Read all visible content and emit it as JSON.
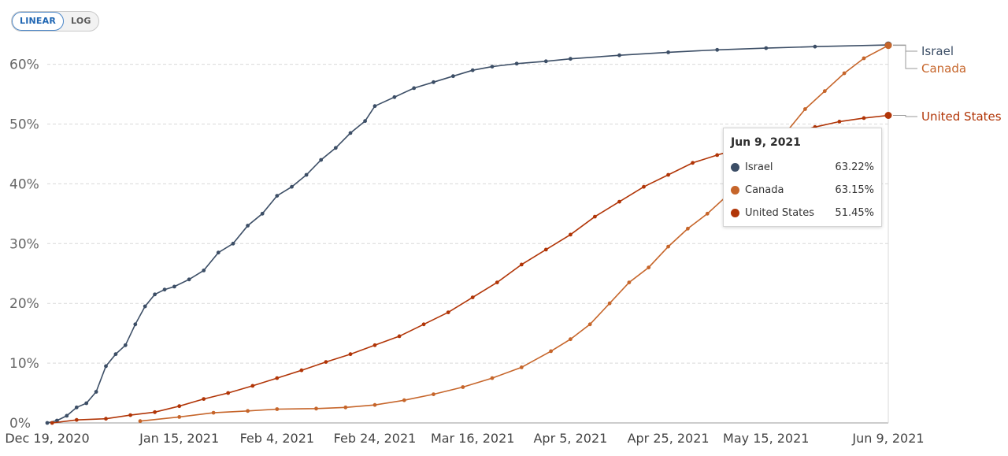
{
  "controls": {
    "linear_label": "LINEAR",
    "log_label": "LOG",
    "active": "linear"
  },
  "tooltip": {
    "date": "Jun 9, 2021",
    "rows": [
      {
        "name": "Israel",
        "value": "63.22%",
        "color": "#3c4e66"
      },
      {
        "name": "Canada",
        "value": "63.15%",
        "color": "#c6652a"
      },
      {
        "name": "United States",
        "value": "51.45%",
        "color": "#b13507"
      }
    ]
  },
  "chart_data": {
    "type": "line",
    "x_unit": "date",
    "xlim": [
      "2020-12-19",
      "2021-06-09"
    ],
    "ylim": [
      0,
      63.5
    ],
    "y_ticks": [
      0,
      10,
      20,
      30,
      40,
      50,
      60
    ],
    "y_tick_labels": [
      "0%",
      "10%",
      "20%",
      "30%",
      "40%",
      "50%",
      "60%"
    ],
    "x_ticks": [
      "2020-12-19",
      "2021-01-15",
      "2021-02-04",
      "2021-02-24",
      "2021-03-16",
      "2021-04-05",
      "2021-04-25",
      "2021-05-15",
      "2021-06-09"
    ],
    "x_tick_labels": [
      "Dec 19, 2020",
      "Jan 15, 2021",
      "Feb 4, 2021",
      "Feb 24, 2021",
      "Mar 16, 2021",
      "Apr 5, 2021",
      "Apr 25, 2021",
      "May 15, 2021",
      "Jun 9, 2021"
    ],
    "grid": true,
    "series": [
      {
        "name": "Israel",
        "color": "#3c4e66",
        "points": [
          [
            "2020-12-19",
            0
          ],
          [
            "2020-12-21",
            0.4
          ],
          [
            "2020-12-23",
            1.2
          ],
          [
            "2020-12-25",
            2.6
          ],
          [
            "2020-12-27",
            3.3
          ],
          [
            "2020-12-29",
            5.2
          ],
          [
            "2020-12-31",
            9.5
          ],
          [
            "2021-01-02",
            11.5
          ],
          [
            "2021-01-04",
            13.0
          ],
          [
            "2021-01-06",
            16.5
          ],
          [
            "2021-01-08",
            19.5
          ],
          [
            "2021-01-10",
            21.5
          ],
          [
            "2021-01-12",
            22.3
          ],
          [
            "2021-01-14",
            22.8
          ],
          [
            "2021-01-17",
            24.0
          ],
          [
            "2021-01-20",
            25.5
          ],
          [
            "2021-01-23",
            28.5
          ],
          [
            "2021-01-26",
            30.0
          ],
          [
            "2021-01-29",
            33.0
          ],
          [
            "2021-02-01",
            35.0
          ],
          [
            "2021-02-04",
            38.0
          ],
          [
            "2021-02-07",
            39.5
          ],
          [
            "2021-02-10",
            41.5
          ],
          [
            "2021-02-13",
            44.0
          ],
          [
            "2021-02-16",
            46.0
          ],
          [
            "2021-02-19",
            48.5
          ],
          [
            "2021-02-22",
            50.5
          ],
          [
            "2021-02-24",
            53.0
          ],
          [
            "2021-02-28",
            54.5
          ],
          [
            "2021-03-04",
            56.0
          ],
          [
            "2021-03-08",
            57.0
          ],
          [
            "2021-03-12",
            58.0
          ],
          [
            "2021-03-16",
            59.0
          ],
          [
            "2021-03-20",
            59.6
          ],
          [
            "2021-03-25",
            60.1
          ],
          [
            "2021-03-31",
            60.5
          ],
          [
            "2021-04-05",
            60.9
          ],
          [
            "2021-04-15",
            61.5
          ],
          [
            "2021-04-25",
            62.0
          ],
          [
            "2021-05-05",
            62.4
          ],
          [
            "2021-05-15",
            62.7
          ],
          [
            "2021-05-25",
            62.95
          ],
          [
            "2021-06-09",
            63.22
          ]
        ]
      },
      {
        "name": "Canada",
        "color": "#c6652a",
        "points": [
          [
            "2021-01-07",
            0.3
          ],
          [
            "2021-01-15",
            1.0
          ],
          [
            "2021-01-22",
            1.7
          ],
          [
            "2021-01-29",
            2.0
          ],
          [
            "2021-02-04",
            2.3
          ],
          [
            "2021-02-12",
            2.4
          ],
          [
            "2021-02-18",
            2.6
          ],
          [
            "2021-02-24",
            3.0
          ],
          [
            "2021-03-02",
            3.8
          ],
          [
            "2021-03-08",
            4.8
          ],
          [
            "2021-03-14",
            6.0
          ],
          [
            "2021-03-20",
            7.5
          ],
          [
            "2021-03-26",
            9.3
          ],
          [
            "2021-04-01",
            12.0
          ],
          [
            "2021-04-05",
            14.0
          ],
          [
            "2021-04-09",
            16.5
          ],
          [
            "2021-04-13",
            20.0
          ],
          [
            "2021-04-17",
            23.5
          ],
          [
            "2021-04-21",
            26.0
          ],
          [
            "2021-04-25",
            29.5
          ],
          [
            "2021-04-29",
            32.5
          ],
          [
            "2021-05-03",
            35.0
          ],
          [
            "2021-05-07",
            38.0
          ],
          [
            "2021-05-11",
            41.5
          ],
          [
            "2021-05-15",
            45.0
          ],
          [
            "2021-05-19",
            48.5
          ],
          [
            "2021-05-23",
            52.5
          ],
          [
            "2021-05-27",
            55.5
          ],
          [
            "2021-05-31",
            58.5
          ],
          [
            "2021-06-04",
            61.0
          ],
          [
            "2021-06-09",
            63.15
          ]
        ]
      },
      {
        "name": "United States",
        "color": "#b13507",
        "points": [
          [
            "2020-12-20",
            0
          ],
          [
            "2020-12-25",
            0.5
          ],
          [
            "2020-12-31",
            0.7
          ],
          [
            "2021-01-05",
            1.3
          ],
          [
            "2021-01-10",
            1.8
          ],
          [
            "2021-01-15",
            2.8
          ],
          [
            "2021-01-20",
            4.0
          ],
          [
            "2021-01-25",
            5.0
          ],
          [
            "2021-01-30",
            6.2
          ],
          [
            "2021-02-04",
            7.5
          ],
          [
            "2021-02-09",
            8.8
          ],
          [
            "2021-02-14",
            10.2
          ],
          [
            "2021-02-19",
            11.5
          ],
          [
            "2021-02-24",
            13.0
          ],
          [
            "2021-03-01",
            14.5
          ],
          [
            "2021-03-06",
            16.5
          ],
          [
            "2021-03-11",
            18.5
          ],
          [
            "2021-03-16",
            21.0
          ],
          [
            "2021-03-21",
            23.5
          ],
          [
            "2021-03-26",
            26.5
          ],
          [
            "2021-03-31",
            29.0
          ],
          [
            "2021-04-05",
            31.5
          ],
          [
            "2021-04-10",
            34.5
          ],
          [
            "2021-04-15",
            37.0
          ],
          [
            "2021-04-20",
            39.5
          ],
          [
            "2021-04-25",
            41.5
          ],
          [
            "2021-04-30",
            43.5
          ],
          [
            "2021-05-05",
            44.8
          ],
          [
            "2021-05-10",
            46.0
          ],
          [
            "2021-05-15",
            47.2
          ],
          [
            "2021-05-20",
            48.4
          ],
          [
            "2021-05-25",
            49.5
          ],
          [
            "2021-05-30",
            50.4
          ],
          [
            "2021-06-04",
            51.0
          ],
          [
            "2021-06-09",
            51.45
          ]
        ]
      }
    ]
  }
}
